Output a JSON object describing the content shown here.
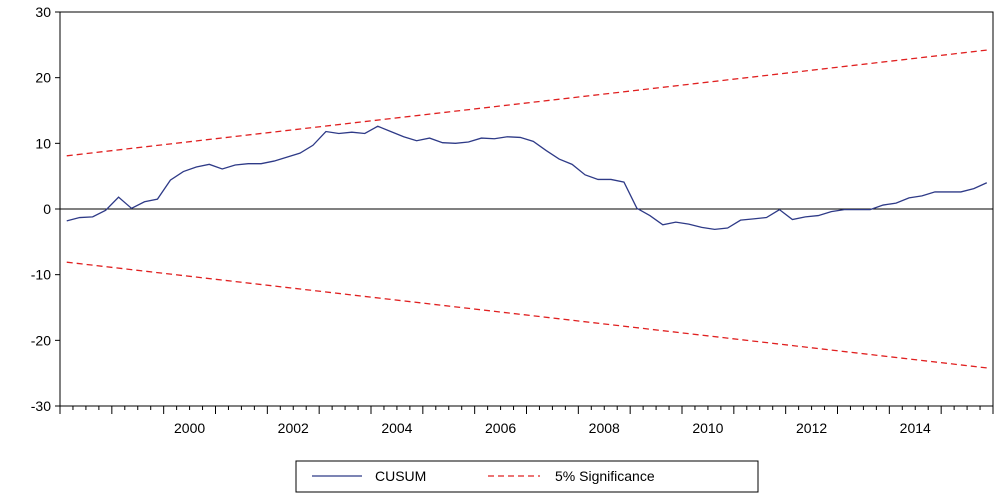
{
  "chart_data": {
    "type": "line",
    "title": "",
    "xlabel": "",
    "ylabel": "",
    "ylim": [
      -30,
      30
    ],
    "xlim": [
      1998.0,
      2016.0
    ],
    "yticks": [
      "30",
      "20",
      "10",
      "0",
      "-10",
      "-20",
      "-30"
    ],
    "xticks": [
      "2000",
      "2002",
      "2004",
      "2006",
      "2008",
      "2010",
      "2012",
      "2014"
    ],
    "zero_line": true,
    "grid": false,
    "legend": {
      "placement": "bottom-center",
      "entries": [
        "CUSUM",
        "5% Significance"
      ]
    },
    "series": [
      {
        "name": "CUSUM",
        "color": "#2e3a87",
        "style": "solid",
        "x": [
          1998.13,
          1998.38,
          1998.63,
          1998.88,
          1999.13,
          1999.38,
          1999.63,
          1999.88,
          2000.13,
          2000.38,
          2000.63,
          2000.88,
          2001.13,
          2001.38,
          2001.63,
          2001.88,
          2002.13,
          2002.38,
          2002.63,
          2002.88,
          2003.13,
          2003.38,
          2003.63,
          2003.88,
          2004.13,
          2004.38,
          2004.63,
          2004.88,
          2005.13,
          2005.38,
          2005.63,
          2005.88,
          2006.13,
          2006.38,
          2006.63,
          2006.88,
          2007.13,
          2007.38,
          2007.63,
          2007.88,
          2008.13,
          2008.38,
          2008.63,
          2008.88,
          2009.13,
          2009.38,
          2009.63,
          2009.88,
          2010.13,
          2010.38,
          2010.63,
          2010.88,
          2011.13,
          2011.38,
          2011.63,
          2011.88,
          2012.13,
          2012.38,
          2012.63,
          2012.88,
          2013.13,
          2013.38,
          2013.63,
          2013.88,
          2014.13,
          2014.38,
          2014.63,
          2014.88,
          2015.13,
          2015.38,
          2015.63,
          2015.88
        ],
        "values": [
          -1.8,
          -1.3,
          -1.2,
          -0.2,
          1.8,
          0.1,
          1.1,
          1.5,
          4.4,
          5.7,
          6.4,
          6.8,
          6.1,
          6.7,
          6.9,
          6.9,
          7.3,
          7.9,
          8.5,
          9.7,
          11.8,
          11.5,
          11.7,
          11.5,
          12.6,
          11.8,
          11.0,
          10.4,
          10.8,
          10.1,
          10.0,
          10.2,
          10.8,
          10.7,
          11.0,
          10.9,
          10.3,
          8.9,
          7.6,
          6.8,
          5.2,
          4.5,
          4.5,
          4.1,
          0.1,
          -1.0,
          -2.4,
          -2.0,
          -2.3,
          -2.8,
          -3.1,
          -2.9,
          -1.7,
          -1.5,
          -1.3,
          -0.1,
          -1.6,
          -1.2,
          -1.0,
          -0.4,
          -0.1,
          -0.1,
          -0.1,
          0.6,
          0.9,
          1.7,
          2.0,
          2.6,
          2.6,
          2.6,
          3.1,
          4.0
        ]
      },
      {
        "name": "5% Significance",
        "color": "#e02020",
        "style": "dashed",
        "x": [
          1998.13,
          2015.88
        ],
        "values": [
          8.1,
          24.2
        ]
      },
      {
        "name": "5% Significance",
        "color": "#e02020",
        "style": "dashed",
        "x": [
          1998.13,
          2015.88
        ],
        "values": [
          -8.1,
          -24.2
        ]
      }
    ]
  }
}
